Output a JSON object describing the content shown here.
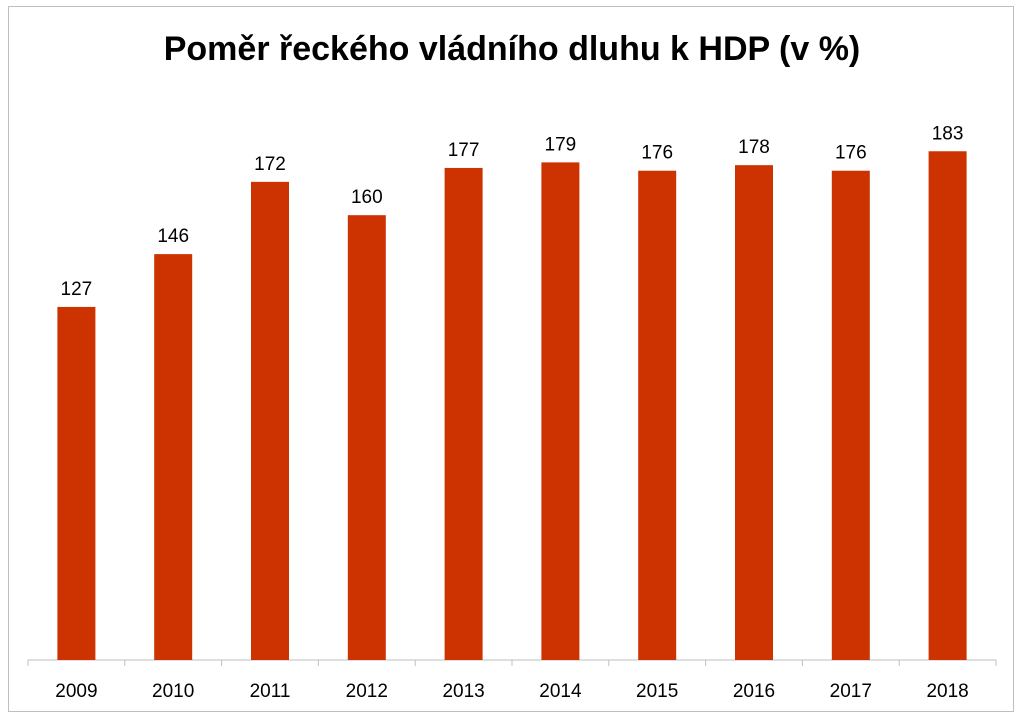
{
  "chart_data": {
    "type": "bar",
    "title": "Poměr řeckého vládního dluhu k HDP (v %)",
    "categories": [
      "2009",
      "2010",
      "2011",
      "2012",
      "2013",
      "2014",
      "2015",
      "2016",
      "2017",
      "2018"
    ],
    "values": [
      127,
      146,
      172,
      160,
      177,
      179,
      176,
      178,
      176,
      183
    ],
    "xlabel": "",
    "ylabel": "",
    "ylim": [
      0,
      200
    ],
    "grid": false,
    "legend": "none",
    "colors": {
      "bar": "#cc3300",
      "axis": "#bfbfbf"
    }
  }
}
